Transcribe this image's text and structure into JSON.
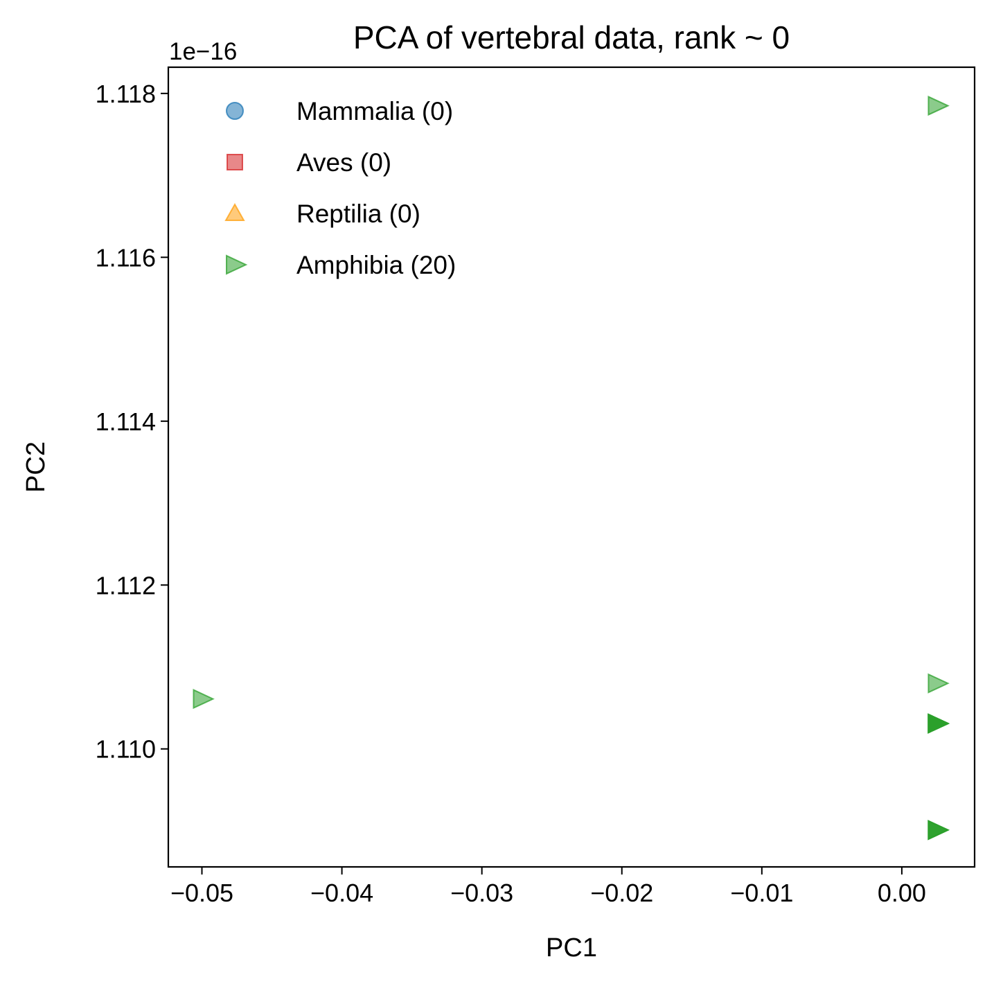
{
  "chart_data": {
    "type": "scatter",
    "title": "PCA of vertebral data, rank ~ 0",
    "xlabel": "PC1",
    "ylabel": "PC2",
    "y_offset_label": "1e−16",
    "xlim": [
      -0.0524,
      0.0052
    ],
    "ylim": [
      1.10856,
      1.11832
    ],
    "xticks": [
      -0.05,
      -0.04,
      -0.03,
      -0.02,
      -0.01,
      0.0
    ],
    "xtick_labels": [
      "−0.05",
      "−0.04",
      "−0.03",
      "−0.02",
      "−0.01",
      "0.00"
    ],
    "yticks": [
      1.11,
      1.112,
      1.114,
      1.116,
      1.118
    ],
    "ytick_labels": [
      "1.110",
      "1.112",
      "1.114",
      "1.116",
      "1.118"
    ],
    "grid": false,
    "legend_position": "top-left",
    "series": [
      {
        "name": "Mammalia (0)",
        "marker": "circle",
        "color": "#1f77b4",
        "points": []
      },
      {
        "name": "Aves (0)",
        "marker": "square",
        "color": "#d62728",
        "points": []
      },
      {
        "name": "Reptilia (0)",
        "marker": "triangle-up",
        "color": "#ff9f0e",
        "points": []
      },
      {
        "name": "Amphibia (20)",
        "marker": "triangle-right",
        "color": "#2ca02c",
        "points": [
          [
            -0.05,
            1.11061
          ],
          [
            0.0025,
            1.11785
          ],
          [
            0.0025,
            1.1108
          ],
          [
            0.0025,
            1.11031
          ],
          [
            0.0025,
            1.11031
          ],
          [
            0.0025,
            1.11031
          ],
          [
            0.0025,
            1.11031
          ],
          [
            0.0025,
            1.11031
          ],
          [
            0.0025,
            1.11031
          ],
          [
            0.0025,
            1.11031
          ],
          [
            0.0025,
            1.11031
          ],
          [
            0.0025,
            1.11031
          ],
          [
            0.0025,
            1.11031
          ],
          [
            0.0025,
            1.11031
          ],
          [
            0.0025,
            1.11031
          ],
          [
            0.0025,
            1.10901
          ],
          [
            0.0025,
            1.10901
          ],
          [
            0.0025,
            1.10901
          ],
          [
            0.0025,
            1.10901
          ],
          [
            0.0025,
            1.10901
          ]
        ]
      }
    ]
  }
}
